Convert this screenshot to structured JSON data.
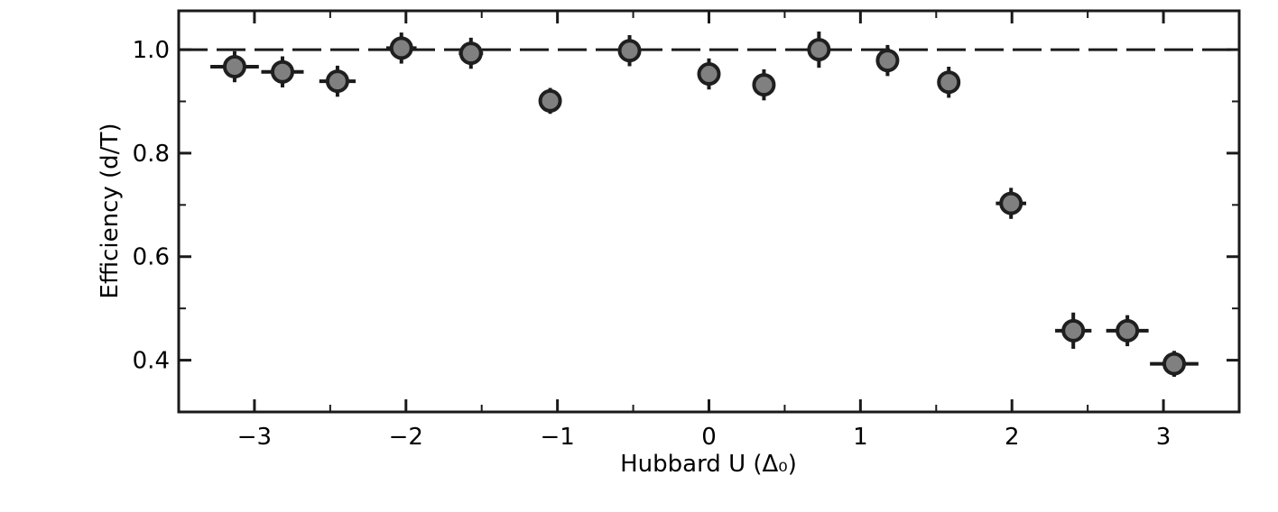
{
  "chart_data": {
    "type": "scatter",
    "xlabel": "Hubbard U (Δ₀)",
    "ylabel": "Efficiency (d/T)",
    "x": [
      -3.131,
      -2.815,
      -2.452,
      -2.03,
      -1.571,
      -1.048,
      -0.524,
      0,
      0.363,
      0.726,
      1.179,
      1.583,
      1.994,
      2.405,
      2.762,
      3.071
    ],
    "y": [
      0.967,
      0.957,
      0.939,
      1.003,
      0.993,
      0.901,
      0.998,
      0.953,
      0.932,
      1.0,
      0.979,
      0.937,
      0.703,
      0.457,
      0.457,
      0.393
    ],
    "xerr": [
      0.16,
      0.14,
      0.12,
      0.1,
      0.08,
      null,
      null,
      null,
      null,
      null,
      null,
      0.06,
      0.1,
      0.12,
      0.14,
      0.16
    ],
    "yerr": [
      0.03,
      0.03,
      0.03,
      0.03,
      0.03,
      0.025,
      0.03,
      0.03,
      0.03,
      0.035,
      0.03,
      0.03,
      0.03,
      0.035,
      0.03,
      0.025
    ],
    "color": "#808080",
    "edgecolor": "#1f1f1f",
    "hline": 1.0,
    "xlim": [
      -3.5,
      3.5
    ],
    "ylim": [
      0.3,
      1.075
    ],
    "xticks": [
      {
        "value": -3,
        "label": "−3"
      },
      {
        "value": -2,
        "label": "−2"
      },
      {
        "value": -1,
        "label": "−1"
      },
      0,
      1,
      2,
      3
    ],
    "yticks": [
      0.4,
      0.6,
      0.8,
      {
        "value": 1,
        "label": "1.0"
      }
    ],
    "minor_xticks": [
      -3.5,
      -2.5,
      -1.5,
      -0.5,
      0.5,
      1.5,
      2.5,
      3.5
    ],
    "minor_yticks": [
      0.3,
      0.5,
      0.7,
      0.9
    ]
  }
}
